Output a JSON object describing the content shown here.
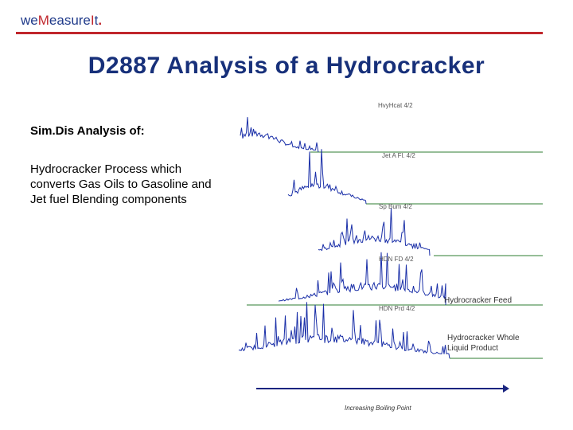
{
  "header": {
    "logo_parts": [
      "we",
      "M",
      "easure",
      "I",
      "t",
      "."
    ],
    "title": "D2887 Analysis of a Hydrocracker"
  },
  "body": {
    "subheading": "Sim.Dis Analysis of:",
    "description": "Hydrocracker Process which converts Gas Oils to Gasoline and Jet fuel Blending components"
  },
  "chromatograms": [
    {
      "label": "HvyHcat 4/2"
    },
    {
      "label": "Jet A Fl. 4/2"
    },
    {
      "label": "Sp Bum 4/2"
    },
    {
      "label": "HDN FD 4/2"
    },
    {
      "label": "HDN Prd 4/2"
    }
  ],
  "callouts": {
    "feed": "Hydrocracker Feed",
    "whole_line1": "Hydrocracker Whole",
    "whole_line2": "Liquid Product"
  },
  "axis": {
    "caption": "Increasing Boiling Point"
  },
  "colors": {
    "accent_red": "#c0262c",
    "title_blue": "#17307a",
    "trace_blue": "#1a2fa8",
    "baseline_green": "#2e7d32"
  }
}
